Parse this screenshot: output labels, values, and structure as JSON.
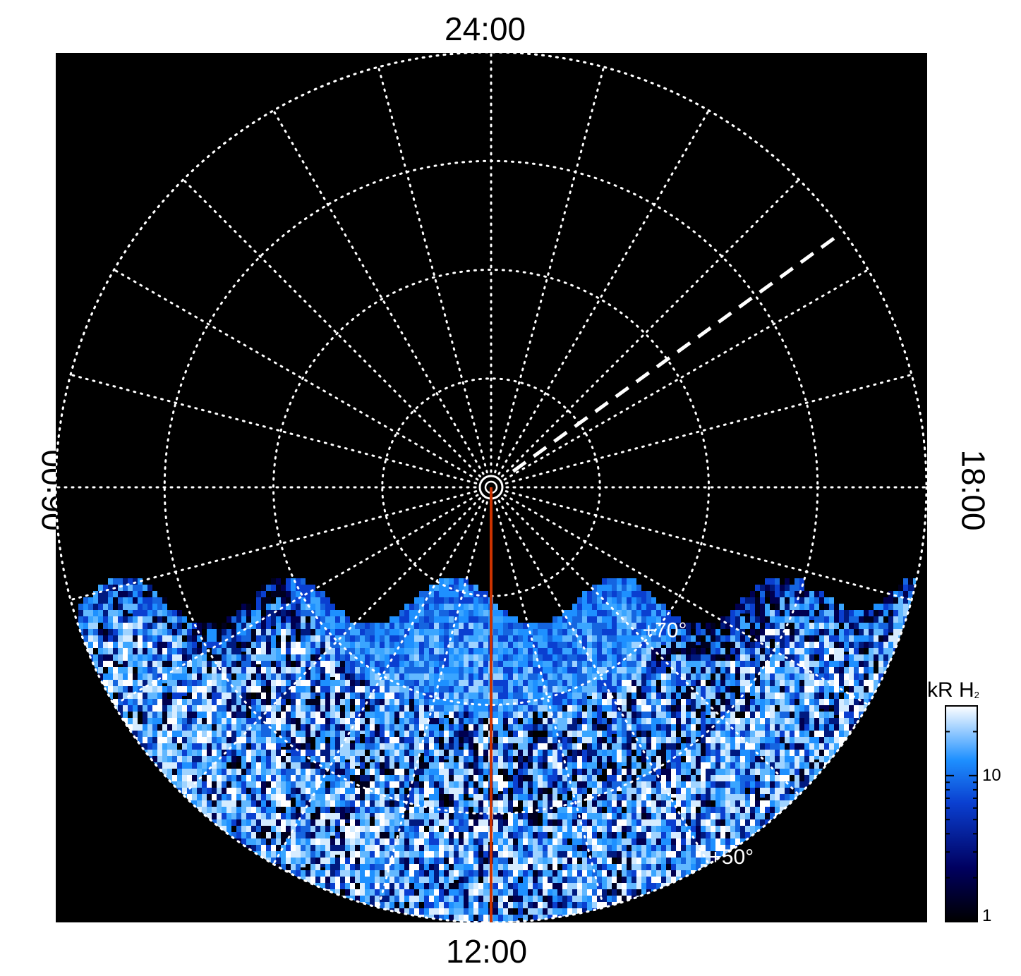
{
  "labels": {
    "top": "24:00",
    "bottom": "12:00",
    "left": "06:00",
    "right": "18:00"
  },
  "grid": {
    "latitude_rings_deg": [
      80,
      70,
      60,
      50
    ],
    "meridian_spacing_hours": 1,
    "ring_labels": [
      {
        "text": "+70°",
        "lat": 70,
        "lt_hours": 15.3
      },
      {
        "text": "+50°",
        "lat": 50,
        "lt_hours": 14.15
      }
    ]
  },
  "reference_lines": {
    "red_meridian_lt": "12:00",
    "dashed_meridian_lt_hours": 20.4
  },
  "colorbar": {
    "title": "kR H",
    "title_subscript": "2",
    "scale": "log",
    "range": [
      1,
      30
    ],
    "tick_labels": [
      "10",
      "1"
    ]
  },
  "colors": {
    "background": "#000000",
    "grid": "#ffffff",
    "red_line": "#cc3300",
    "emission_dark": "#000060",
    "emission_mid": "#1e90ff",
    "emission_bright": "#ffffff"
  }
}
